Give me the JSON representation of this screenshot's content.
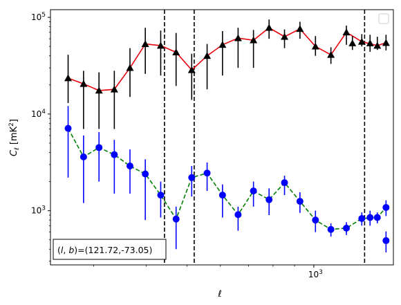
{
  "chart_data": {
    "type": "line",
    "title": "",
    "xlabel": "ℓ",
    "ylabel_main": "C",
    "ylabel_sub": "ℓ",
    "ylabel_unit_open": "  [mK",
    "ylabel_unit_sup": "2",
    "ylabel_unit_close": "]",
    "xscale": "log",
    "yscale": "log",
    "xlim": [
      237,
      1545
    ],
    "ylim": [
      275,
      120000
    ],
    "x_tick_label": "10",
    "x_tick_sup": "3",
    "x_tick_value": 1000,
    "y_tick_labels": [
      {
        "base": "10",
        "sup": "3",
        "value": 1000
      },
      {
        "base": "10",
        "sup": "4",
        "value": 10000
      },
      {
        "base": "10",
        "sup": "5",
        "value": 100000
      }
    ],
    "legend": {
      "placement": "top-right",
      "entries": []
    },
    "annotation": {
      "text": "(l, b)=(121.72,-73.05)",
      "l_symbol": "l",
      "b_symbol": "b",
      "prefix": "(",
      "sep": ", ",
      "suffix": ")=(121.72,-73.05)",
      "placement": "bottom-left"
    },
    "vlines": [
      {
        "x": 442,
        "style": "dashed",
        "color": "#000000"
      },
      {
        "x": 520,
        "style": "dashed",
        "color": "#000000"
      },
      {
        "x": 1320,
        "style": "dashed",
        "color": "#000000"
      }
    ],
    "series": [
      {
        "marker": "triangle",
        "marker_color": "#000000",
        "line_color": "#e8000b",
        "line_style": "solid",
        "errorbar_color": "#000000",
        "x": [
          261,
          284,
          309,
          336,
          366,
          398,
          433,
          471,
          513,
          558,
          607,
          661,
          719,
          783,
          852,
          927,
          1009,
          1098,
          1195,
          1300,
          1415,
          1484
        ],
        "y": [
          23500,
          20500,
          17500,
          18000,
          30000,
          53000,
          51000,
          43500,
          28500,
          40000,
          52000,
          61000,
          58000,
          78000,
          63000,
          76000,
          50000,
          41000,
          70000,
          56000,
          51000,
          54500
        ],
        "err_low": [
          10500,
          13500,
          10500,
          11000,
          15000,
          27000,
          26000,
          24000,
          14500,
          22000,
          27000,
          31000,
          28000,
          18000,
          15000,
          16000,
          10000,
          8000,
          18000,
          6000,
          5000,
          9000
        ],
        "err_high": [
          17500,
          7500,
          9500,
          10000,
          18000,
          25000,
          22000,
          25500,
          13500,
          13000,
          20000,
          17000,
          16000,
          17000,
          12000,
          14000,
          14000,
          8000,
          12000,
          11000,
          12000,
          11500
        ],
        "extra_x": [
          1235,
          1360
        ],
        "extra_y": [
          54000,
          54000
        ],
        "extra_err_low": [
          8000,
          10000
        ],
        "extra_err_high": [
          10000,
          12000
        ]
      },
      {
        "marker": "circle",
        "marker_color": "#0000ff",
        "line_color": "#008000",
        "line_style": "dashed",
        "errorbar_color": "#0000ff",
        "x": [
          261,
          284,
          309,
          336,
          366,
          398,
          433,
          471,
          513,
          558,
          607,
          661,
          719,
          783,
          852,
          927,
          1009,
          1098,
          1195,
          1300,
          1415,
          1484
        ],
        "y": [
          7100,
          3600,
          4500,
          3800,
          2900,
          2400,
          1450,
          820,
          2200,
          2450,
          1450,
          910,
          1600,
          1300,
          1950,
          1250,
          800,
          640,
          660,
          830,
          850,
          1080
        ],
        "err_low": [
          4900,
          2400,
          2500,
          2300,
          1400,
          1600,
          600,
          420,
          800,
          850,
          600,
          290,
          500,
          400,
          500,
          300,
          200,
          100,
          100,
          130,
          110,
          200
        ],
        "err_high": [
          5000,
          2400,
          2000,
          1600,
          1400,
          1000,
          550,
          280,
          700,
          700,
          420,
          190,
          400,
          400,
          350,
          300,
          200,
          100,
          100,
          130,
          110,
          200
        ],
        "extra_x": [
          1360,
          1484
        ],
        "extra_y": [
          850,
          490
        ],
        "extra_err_low": [
          150,
          120
        ],
        "extra_err_high": [
          150,
          120
        ]
      }
    ]
  }
}
